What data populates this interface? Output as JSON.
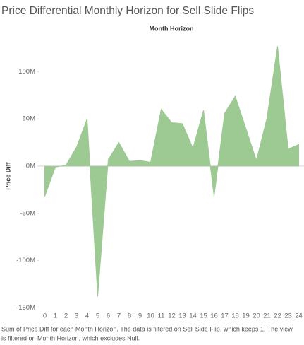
{
  "chart_data": {
    "type": "area",
    "title": "Price Differential Monthly Horizon for Sell Slide Flips",
    "subtitle": "Month Horizon",
    "y_label": "Price Diff",
    "caption": [
      "Sum of Price Diff for each Month Horizon. The data is filtered on Sell Side Flip, which keeps 1. The view",
      "is filtered on Month Horizon, which excludes Null."
    ],
    "categories": [
      "0",
      "1",
      "2",
      "3",
      "4",
      "5",
      "6",
      "7",
      "8",
      "9",
      "10",
      "11",
      "12",
      "13",
      "14",
      "15",
      "16",
      "17",
      "18",
      "19",
      "20",
      "21",
      "22",
      "23",
      "24"
    ],
    "values": [
      -32000000,
      -1000000,
      1000000,
      20000000,
      50000000,
      -138000000,
      7000000,
      25000000,
      5000000,
      6000000,
      4000000,
      60000000,
      46000000,
      45000000,
      19000000,
      59000000,
      -32000000,
      56000000,
      74000000,
      40000000,
      6000000,
      51000000,
      127000000,
      18000000,
      23000000
    ],
    "color": "#9dc993",
    "ylim": [
      -152000000,
      131000000
    ],
    "yticks": [
      {
        "value": -150000000,
        "label": "-150M"
      },
      {
        "value": -100000000,
        "label": "-100M"
      },
      {
        "value": -50000000,
        "label": "-50M"
      },
      {
        "value": 0,
        "label": "0M"
      },
      {
        "value": 50000000,
        "label": "50M"
      },
      {
        "value": 100000000,
        "label": "100M"
      }
    ],
    "grid": false
  }
}
